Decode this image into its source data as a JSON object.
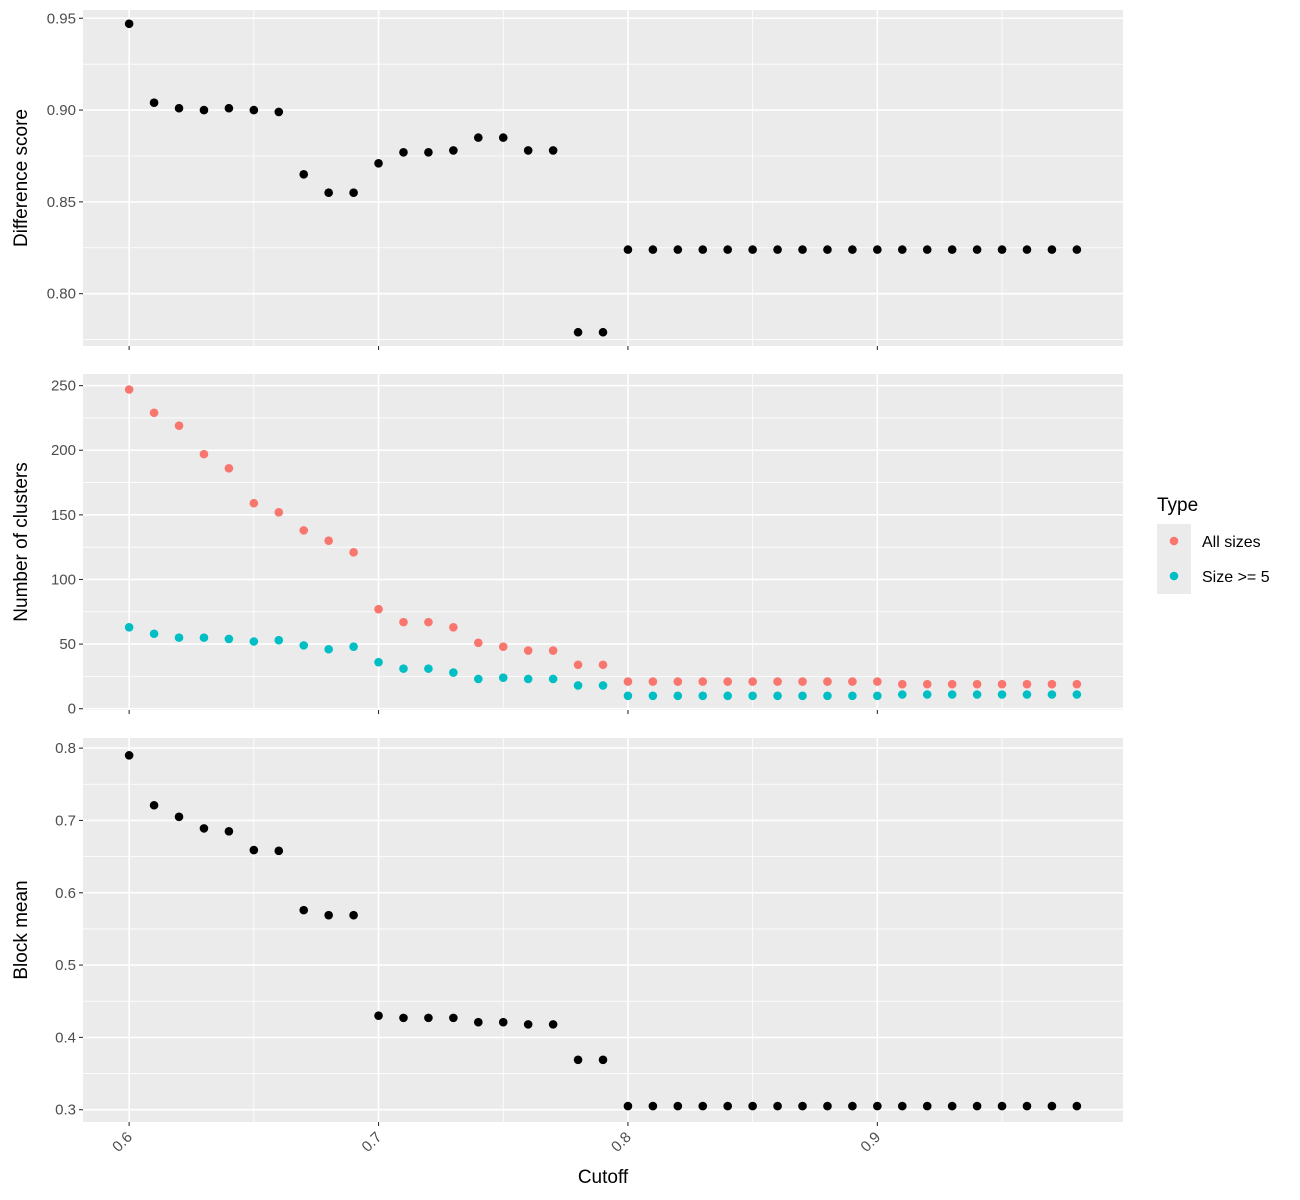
{
  "chart_data": {
    "type": "scatter",
    "xlabel": "Cutoff",
    "x_ticks": [
      "0.6",
      "0.7",
      "0.8",
      "0.9"
    ],
    "x": [
      0.6,
      0.61,
      0.62,
      0.63,
      0.64,
      0.65,
      0.66,
      0.67,
      0.68,
      0.69,
      0.7,
      0.71,
      0.72,
      0.73,
      0.74,
      0.75,
      0.76,
      0.77,
      0.78,
      0.79,
      0.8,
      0.81,
      0.82,
      0.83,
      0.84,
      0.85,
      0.86,
      0.87,
      0.88,
      0.89,
      0.9,
      0.91,
      0.92,
      0.93,
      0.94,
      0.95,
      0.96,
      0.97,
      0.98
    ],
    "xlim": [
      0.5815,
      0.9985
    ],
    "background": "#ebebeb",
    "grid": true,
    "panels": [
      {
        "ylabel": "Difference score",
        "y_ticks": [
          "0.80",
          "0.85",
          "0.90",
          "0.95"
        ],
        "ylim": [
          0.7715,
          0.9545
        ],
        "series": [
          {
            "color": "#000000",
            "values": [
              0.947,
              0.904,
              0.901,
              0.9,
              0.901,
              0.9,
              0.899,
              0.865,
              0.855,
              0.855,
              0.871,
              0.877,
              0.877,
              0.878,
              0.885,
              0.885,
              0.878,
              0.878,
              0.779,
              0.779,
              0.824,
              0.824,
              0.824,
              0.824,
              0.824,
              0.824,
              0.824,
              0.824,
              0.824,
              0.824,
              0.824,
              0.824,
              0.824,
              0.824,
              0.824,
              0.824,
              0.824,
              0.824,
              0.824
            ]
          }
        ]
      },
      {
        "ylabel": "Number of clusters",
        "y_ticks": [
          "0",
          "50",
          "100",
          "150",
          "200",
          "250"
        ],
        "ylim": [
          -1,
          259
        ],
        "series": [
          {
            "name": "All sizes",
            "color": "#f8766d",
            "values": [
              247,
              229,
              219,
              197,
              186,
              159,
              152,
              138,
              130,
              121,
              77,
              67,
              67,
              63,
              51,
              48,
              45,
              45,
              34,
              34,
              21,
              21,
              21,
              21,
              21,
              21,
              21,
              21,
              21,
              21,
              21,
              19,
              19,
              19,
              19,
              19,
              19,
              19,
              19
            ]
          },
          {
            "name": "Size >= 5",
            "color": "#00bfc4",
            "values": [
              63,
              58,
              55,
              55,
              54,
              52,
              53,
              49,
              46,
              48,
              36,
              31,
              31,
              28,
              23,
              24,
              23,
              23,
              18,
              18,
              10,
              10,
              10,
              10,
              10,
              10,
              10,
              10,
              10,
              10,
              10,
              11,
              11,
              11,
              11,
              11,
              11,
              11,
              11
            ]
          }
        ]
      },
      {
        "ylabel": "Block mean",
        "y_ticks": [
          "0.3",
          "0.4",
          "0.5",
          "0.6",
          "0.7",
          "0.8"
        ],
        "ylim": [
          0.283,
          0.814
        ],
        "series": [
          {
            "color": "#000000",
            "values": [
              0.79,
              0.721,
              0.705,
              0.689,
              0.685,
              0.659,
              0.658,
              0.576,
              0.569,
              0.569,
              0.43,
              0.427,
              0.427,
              0.427,
              0.421,
              0.421,
              0.418,
              0.418,
              0.369,
              0.369,
              0.305,
              0.305,
              0.305,
              0.305,
              0.305,
              0.305,
              0.305,
              0.305,
              0.305,
              0.305,
              0.305,
              0.305,
              0.305,
              0.305,
              0.305,
              0.305,
              0.305,
              0.305,
              0.305
            ]
          }
        ]
      }
    ],
    "legend": {
      "title": "Type",
      "position": "right",
      "entries": [
        {
          "label": "All sizes",
          "color": "#f8766d"
        },
        {
          "label": "Size >= 5",
          "color": "#00bfc4"
        }
      ]
    }
  }
}
